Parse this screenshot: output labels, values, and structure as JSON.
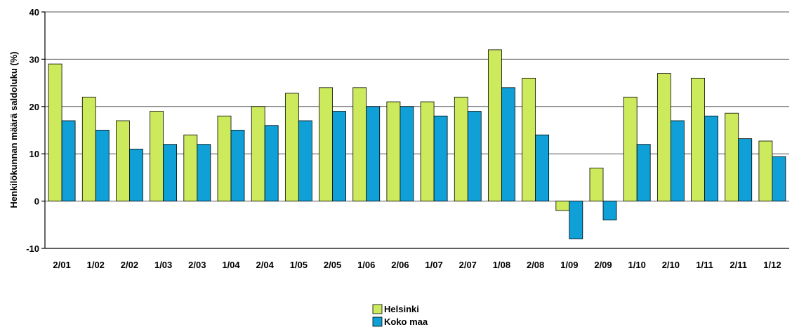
{
  "chart_data": {
    "type": "bar",
    "title": "",
    "xlabel": "",
    "ylabel": "Henkilökunnan määrä saldoluku (%)",
    "ylim": [
      -10,
      40
    ],
    "yticks": [
      -10,
      0,
      10,
      20,
      30,
      40
    ],
    "grid": true,
    "legend_position": "bottom-center",
    "categories": [
      "2/01",
      "1/02",
      "2/02",
      "1/03",
      "2/03",
      "1/04",
      "2/04",
      "1/05",
      "2/05",
      "1/06",
      "2/06",
      "1/07",
      "2/07",
      "1/08",
      "2/08",
      "1/09",
      "2/09",
      "1/10",
      "2/10",
      "1/11",
      "2/11",
      "1/12"
    ],
    "series": [
      {
        "name": "Helsinki",
        "color": "#ccea5c",
        "values": [
          29,
          22,
          17,
          19,
          14,
          18,
          20,
          22.8,
          24,
          24,
          21,
          21,
          22,
          32,
          26,
          -2,
          7,
          22,
          27,
          26,
          18.6,
          12.7
        ]
      },
      {
        "name": "Koko maa",
        "color": "#0fa0d8",
        "values": [
          17,
          15,
          11,
          12,
          12,
          15,
          16,
          17,
          19,
          20,
          20,
          18,
          19,
          24,
          14,
          -8,
          -4,
          12,
          17,
          18,
          13.2,
          9.4
        ]
      }
    ]
  }
}
